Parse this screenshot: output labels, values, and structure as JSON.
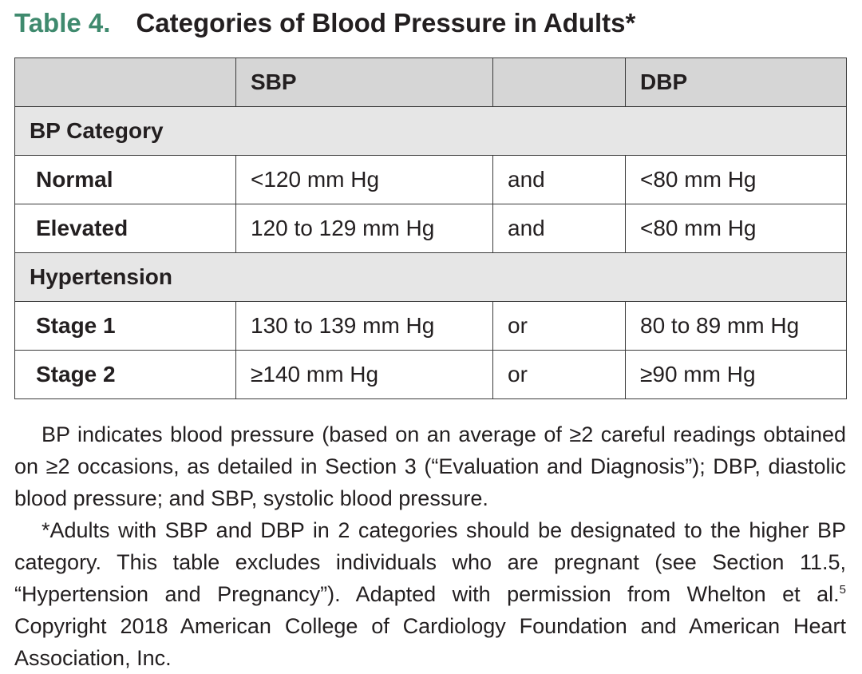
{
  "title": {
    "label": "Table 4.",
    "text": "Categories of Blood Pressure in Adults*"
  },
  "table": {
    "headers": [
      "",
      "SBP",
      "",
      "DBP"
    ],
    "groups": [
      {
        "label": "BP Category",
        "rows": [
          {
            "category": "Normal",
            "sbp": "<120 mm Hg",
            "conj": "and",
            "dbp": "<80 mm Hg"
          },
          {
            "category": "Elevated",
            "sbp": "120 to 129 mm Hg",
            "conj": "and",
            "dbp": "<80 mm Hg"
          }
        ]
      },
      {
        "label": "Hypertension",
        "rows": [
          {
            "category": "Stage 1",
            "sbp": "130 to 139 mm Hg",
            "conj": "or",
            "dbp": "80 to 89 mm Hg"
          },
          {
            "category": "Stage 2",
            "sbp": "≥140 mm Hg",
            "conj": "or",
            "dbp": "≥90 mm Hg"
          }
        ]
      }
    ]
  },
  "notes": {
    "paragraph1": "BP indicates blood pressure (based on an average of ≥2 careful readings obtained on ≥2 occasions, as detailed in Section 3 (“Evaluation and Diagnosis”); DBP, diastolic blood pressure; and SBP, systolic blood pressure.",
    "paragraph2_before": "*Adults with SBP and DBP in 2 categories should be designated to the higher BP category. This table excludes individuals who are pregnant (see Section 11.5, “Hypertension and Pregnancy”). Adapted with permission from Whelton et al.",
    "paragraph2_ref": "5",
    "paragraph2_after": " Copyright 2018 American College of Cardiology Foundation and American Heart Association, Inc."
  }
}
